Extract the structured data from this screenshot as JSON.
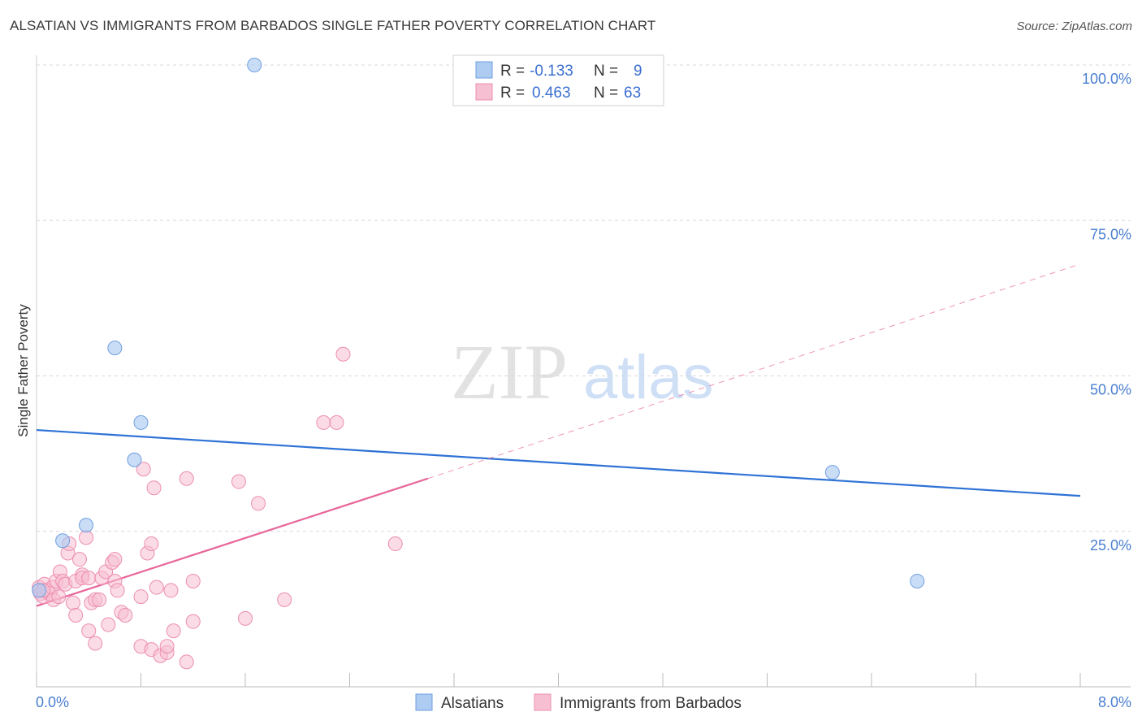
{
  "header": {
    "title": "ALSATIAN VS IMMIGRANTS FROM BARBADOS SINGLE FATHER POVERTY CORRELATION CHART",
    "source": "Source: ZipAtlas.com"
  },
  "watermark": {
    "zip": "ZIP",
    "atlas": "atlas"
  },
  "colors": {
    "alsatians_fill": "#aecbf2",
    "alsatians_stroke": "#6f9fe0",
    "alsatians_line": "#2f72d6",
    "barbados_fill": "#f7c0d2",
    "barbados_stroke": "#ec8db0",
    "barbados_line": "#e8669a",
    "tick_text": "#4a7fd0",
    "grid": "#d8d8d8"
  },
  "legend": {
    "rows": [
      {
        "r_label": "R =",
        "r_value": "-0.133",
        "n_label": "N =",
        "n_value": "9"
      },
      {
        "r_label": "R =",
        "r_value": "0.463",
        "n_label": "N =",
        "n_value": "63"
      }
    ]
  },
  "chart_data": {
    "type": "scatter",
    "title": "ALSATIAN VS IMMIGRANTS FROM BARBADOS SINGLE FATHER POVERTY CORRELATION CHART",
    "xlabel": "",
    "ylabel": "Single Father Poverty",
    "xlim": [
      0,
      8
    ],
    "ylim": [
      0,
      100
    ],
    "x_tick_labels": [
      "0.0%",
      "8.0%"
    ],
    "y_ticks": [
      25,
      50,
      75,
      100
    ],
    "y_tick_labels": [
      "25.0%",
      "50.0%",
      "75.0%",
      "100.0%"
    ],
    "grid": true,
    "legend_position": "top-center",
    "series": [
      {
        "name": "Alsatians",
        "r": -0.133,
        "n": 9,
        "points": [
          [
            1.67,
            100.0
          ],
          [
            0.6,
            54.5
          ],
          [
            0.8,
            42.5
          ],
          [
            0.75,
            36.5
          ],
          [
            0.38,
            26.0
          ],
          [
            0.2,
            23.5
          ],
          [
            6.1,
            34.5
          ],
          [
            6.75,
            17.0
          ],
          [
            0.02,
            15.5
          ]
        ],
        "trend": {
          "x": [
            0,
            8
          ],
          "y": [
            41.3,
            30.7
          ],
          "style": "solid"
        }
      },
      {
        "name": "Immigrants from Barbados",
        "r": 0.463,
        "n": 63,
        "points": [
          [
            0.02,
            16.0
          ],
          [
            0.03,
            15.0
          ],
          [
            0.05,
            14.5
          ],
          [
            0.06,
            16.5
          ],
          [
            0.08,
            15.5
          ],
          [
            0.1,
            15.0
          ],
          [
            0.12,
            16.0
          ],
          [
            0.13,
            14.0
          ],
          [
            0.15,
            17.0
          ],
          [
            0.17,
            14.5
          ],
          [
            0.18,
            18.5
          ],
          [
            0.2,
            17.0
          ],
          [
            0.22,
            16.5
          ],
          [
            0.24,
            21.5
          ],
          [
            0.25,
            23.0
          ],
          [
            0.28,
            13.5
          ],
          [
            0.3,
            17.0
          ],
          [
            0.3,
            11.5
          ],
          [
            0.33,
            20.5
          ],
          [
            0.35,
            18.0
          ],
          [
            0.35,
            17.5
          ],
          [
            0.38,
            24.0
          ],
          [
            0.4,
            17.5
          ],
          [
            0.4,
            9.0
          ],
          [
            0.42,
            13.5
          ],
          [
            0.45,
            14.0
          ],
          [
            0.45,
            7.0
          ],
          [
            0.48,
            14.0
          ],
          [
            0.5,
            17.5
          ],
          [
            0.53,
            18.5
          ],
          [
            0.55,
            10.0
          ],
          [
            0.58,
            20.0
          ],
          [
            0.6,
            17.0
          ],
          [
            0.62,
            15.5
          ],
          [
            0.6,
            20.5
          ],
          [
            0.65,
            12.0
          ],
          [
            0.68,
            11.5
          ],
          [
            0.8,
            14.5
          ],
          [
            0.8,
            6.5
          ],
          [
            0.82,
            35.0
          ],
          [
            0.85,
            21.5
          ],
          [
            0.88,
            23.0
          ],
          [
            0.9,
            32.0
          ],
          [
            0.92,
            16.0
          ],
          [
            0.88,
            6.0
          ],
          [
            0.95,
            5.0
          ],
          [
            1.0,
            5.5
          ],
          [
            1.0,
            6.5
          ],
          [
            1.03,
            15.5
          ],
          [
            1.05,
            9.0
          ],
          [
            1.15,
            33.5
          ],
          [
            1.15,
            4.0
          ],
          [
            1.2,
            17.0
          ],
          [
            1.2,
            10.5
          ],
          [
            1.55,
            33.0
          ],
          [
            1.6,
            11.0
          ],
          [
            1.7,
            29.5
          ],
          [
            1.9,
            14.0
          ],
          [
            2.2,
            42.5
          ],
          [
            2.3,
            42.5
          ],
          [
            2.35,
            53.5
          ],
          [
            2.75,
            23.0
          ],
          [
            0.05,
            15.5
          ]
        ],
        "trend": {
          "x": [
            0,
            3.0
          ],
          "y": [
            13.0,
            33.5
          ],
          "style": "solid"
        },
        "trend_extension": {
          "x": [
            3.0,
            8.0
          ],
          "y": [
            33.5,
            68.0
          ],
          "style": "dashed"
        }
      }
    ]
  },
  "bottom_legend": {
    "items": [
      {
        "label": "Alsatians"
      },
      {
        "label": "Immigrants from Barbados"
      }
    ]
  }
}
